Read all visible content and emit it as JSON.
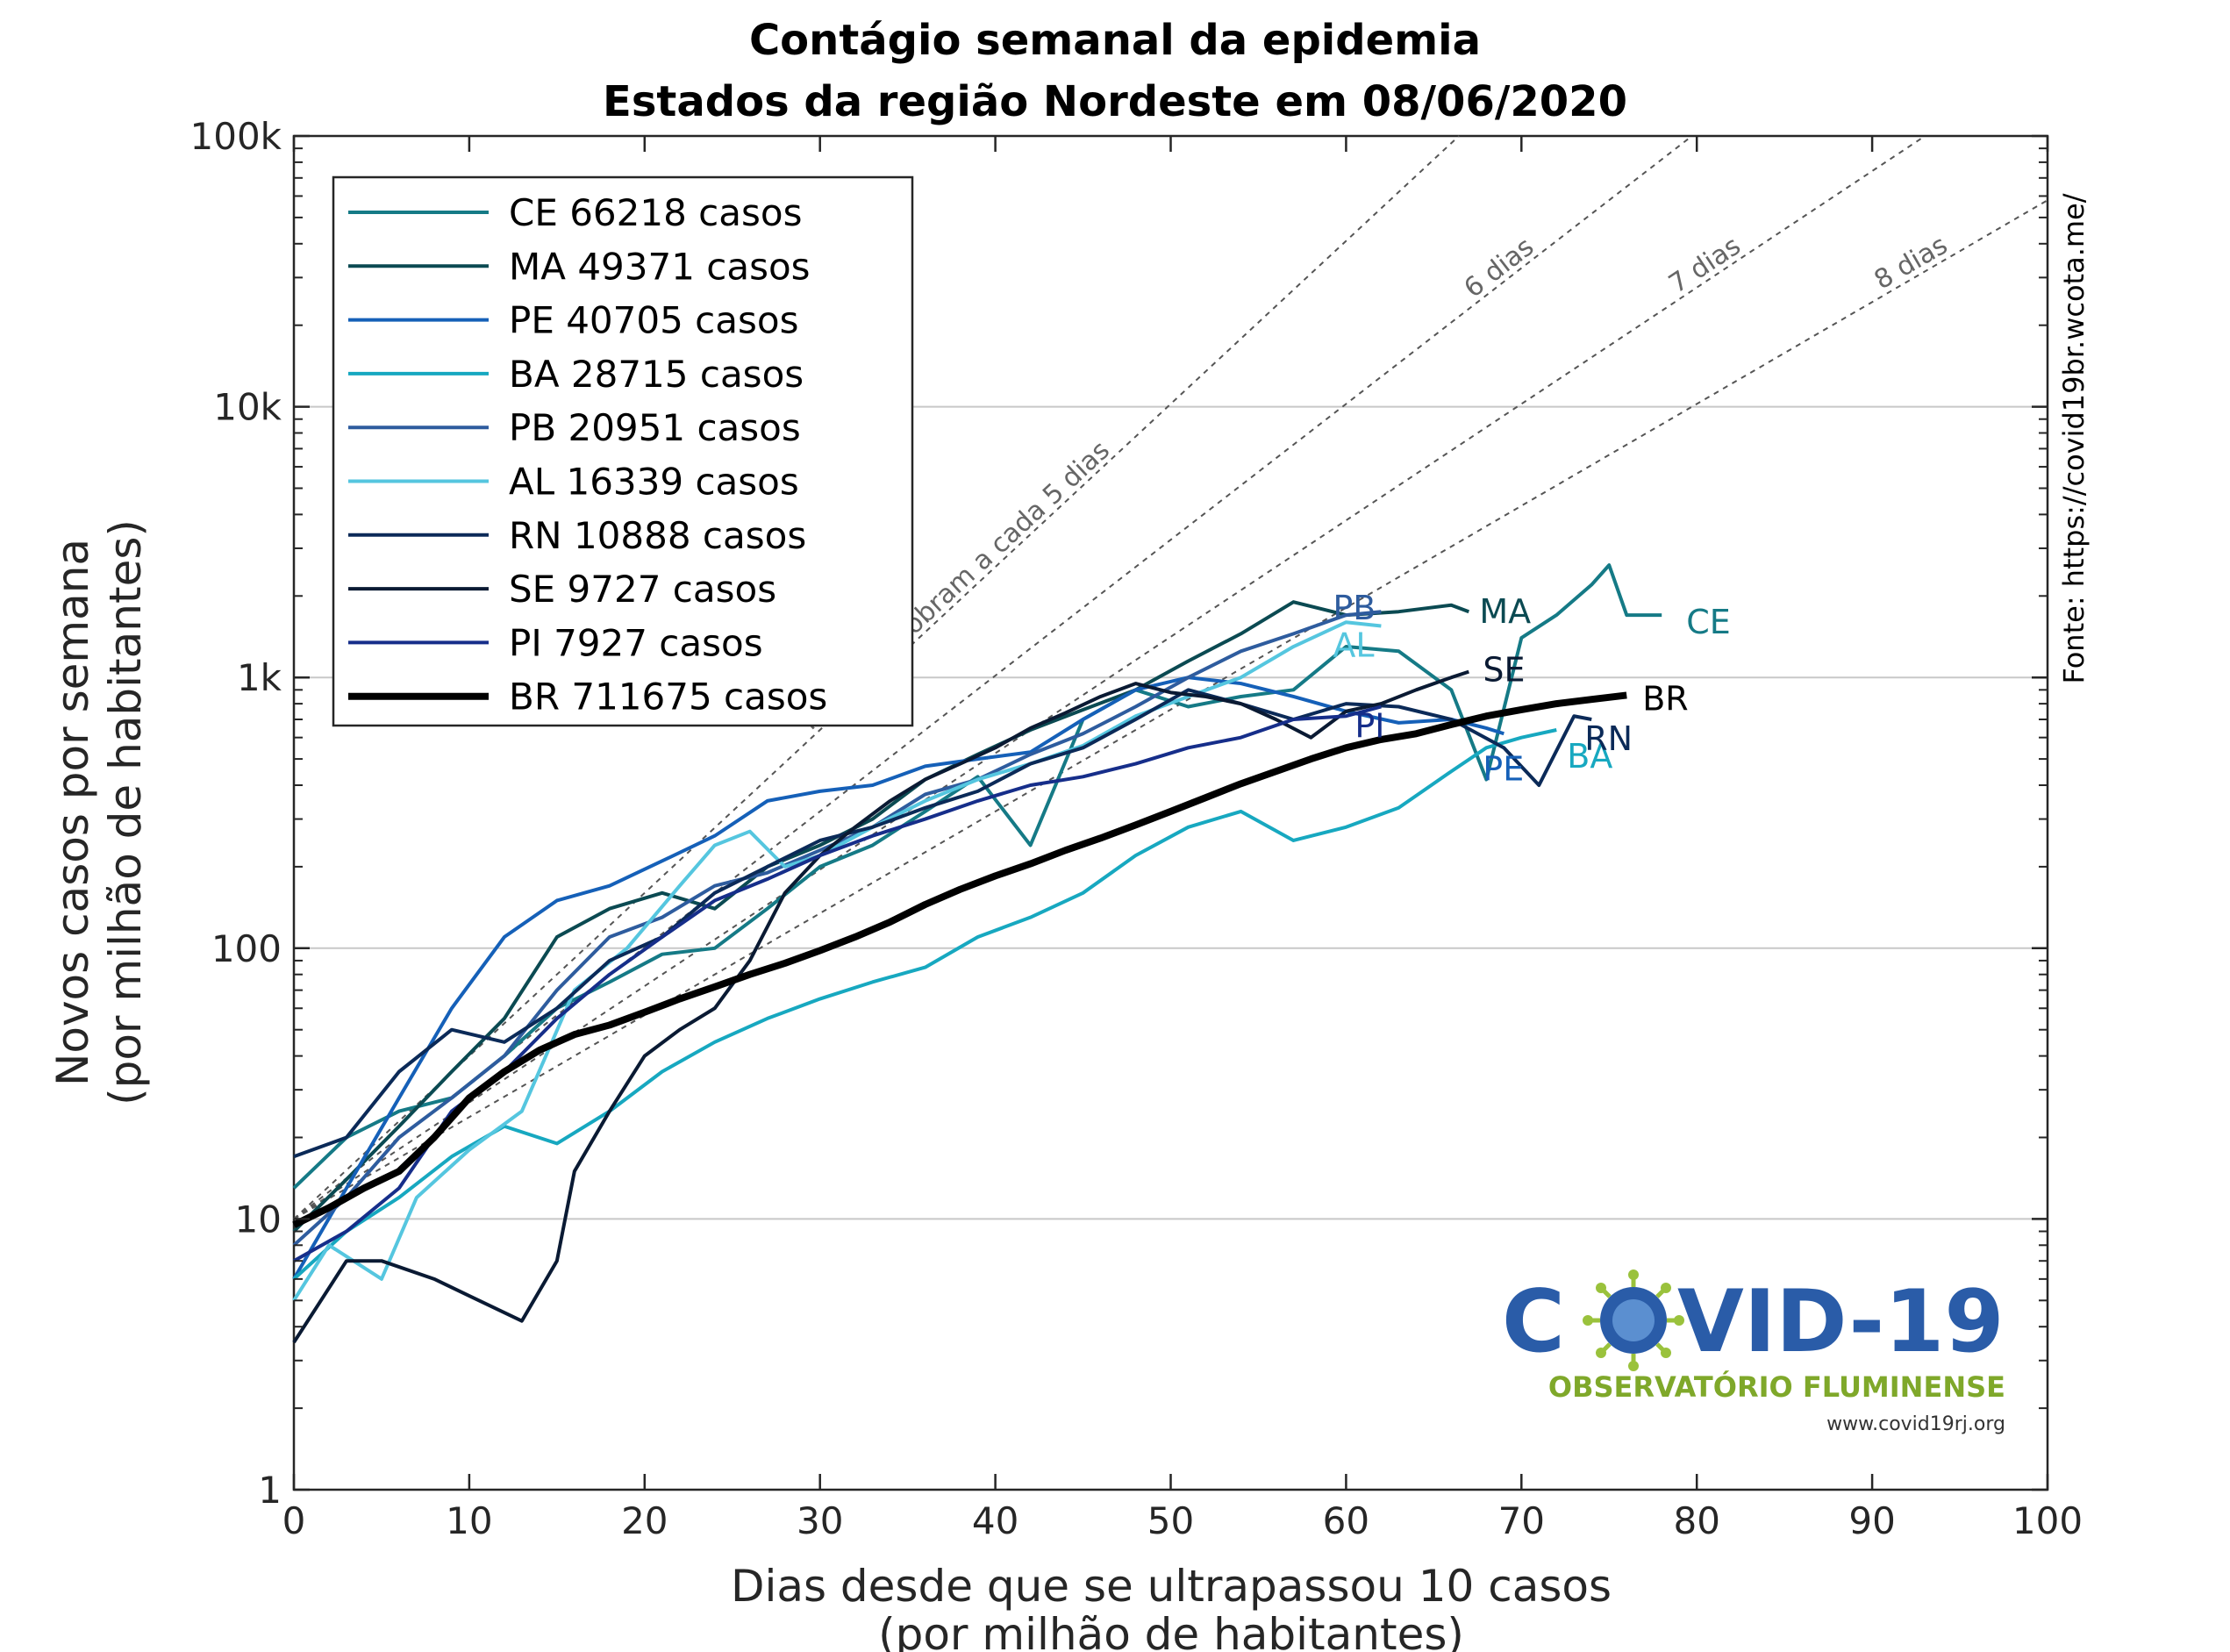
{
  "chart_data": {
    "type": "line",
    "title": "Contágio semanal da epidemia",
    "subtitle": "Estados da região Nordeste em 08/06/2020",
    "xlabel": "Dias desde que se ultrapassou 10 casos",
    "xlabel2": "(por milhão de habitantes)",
    "ylabel": "Novos casos por semana",
    "ylabel2": "(por milhão de habitantes)",
    "xlim": [
      0,
      100
    ],
    "ylim": [
      1,
      100000
    ],
    "yscale": "log",
    "grid": "horizontal",
    "x_ticks": [
      0,
      10,
      20,
      30,
      40,
      50,
      60,
      70,
      80,
      90,
      100
    ],
    "y_ticks": [
      {
        "value": 1,
        "label": "1"
      },
      {
        "value": 10,
        "label": "10"
      },
      {
        "value": 100,
        "label": "100"
      },
      {
        "value": 1000,
        "label": "1k"
      },
      {
        "value": 10000,
        "label": "10k"
      },
      {
        "value": 100000,
        "label": "100k"
      }
    ],
    "legend_position": "top-left",
    "source": "Fonte: https://covid19br.wcota.me/",
    "doubling_guides": [
      {
        "days": 5,
        "label": "números dobram a cada 5 dias"
      },
      {
        "days": 6,
        "label": "6 dias"
      },
      {
        "days": 7,
        "label": "7 dias"
      },
      {
        "days": 8,
        "label": "8 dias"
      }
    ],
    "series": [
      {
        "name": "CE",
        "legend": "CE     66218 casos",
        "color": "#157a86",
        "width": 4,
        "x": [
          0,
          3,
          6,
          9,
          12,
          15,
          18,
          21,
          24,
          27,
          30,
          33,
          36,
          39,
          42,
          45,
          48,
          51,
          54,
          57,
          60,
          63,
          66,
          68,
          70,
          72,
          74,
          75,
          76,
          78
        ],
        "y": [
          13,
          20,
          25,
          28,
          40,
          60,
          75,
          95,
          100,
          140,
          200,
          240,
          320,
          430,
          240,
          700,
          900,
          780,
          850,
          900,
          1300,
          1250,
          900,
          420,
          1400,
          1700,
          2200,
          2600,
          1700,
          1700
        ]
      },
      {
        "name": "MA",
        "legend": "MA    49371 casos",
        "color": "#0b4a52",
        "width": 4,
        "x": [
          0,
          3,
          6,
          9,
          12,
          15,
          18,
          21,
          24,
          27,
          30,
          33,
          36,
          39,
          42,
          45,
          48,
          51,
          54,
          57,
          60,
          63,
          66,
          67
        ],
        "y": [
          9,
          14,
          22,
          35,
          55,
          110,
          140,
          160,
          140,
          200,
          240,
          300,
          420,
          520,
          640,
          760,
          900,
          1150,
          1450,
          1900,
          1700,
          1750,
          1850,
          1750
        ]
      },
      {
        "name": "PE",
        "legend": "PE     40705 casos",
        "color": "#1560b8",
        "width": 4,
        "x": [
          0,
          3,
          6,
          9,
          12,
          15,
          18,
          21,
          24,
          27,
          30,
          33,
          36,
          39,
          42,
          45,
          48,
          51,
          54,
          57,
          60,
          63,
          66,
          68,
          69
        ],
        "y": [
          6,
          13,
          28,
          60,
          110,
          150,
          170,
          210,
          260,
          350,
          380,
          400,
          470,
          500,
          530,
          700,
          900,
          1000,
          950,
          850,
          750,
          680,
          700,
          650,
          620
        ]
      },
      {
        "name": "BA",
        "legend": "BA     28715 casos",
        "color": "#17a8c0",
        "width": 4,
        "x": [
          0,
          3,
          6,
          9,
          12,
          15,
          18,
          21,
          24,
          27,
          30,
          33,
          36,
          39,
          42,
          45,
          48,
          51,
          54,
          57,
          60,
          63,
          66,
          68,
          70,
          72
        ],
        "y": [
          6,
          9,
          12,
          17,
          22,
          19,
          25,
          35,
          45,
          55,
          65,
          75,
          85,
          110,
          130,
          160,
          220,
          280,
          320,
          250,
          280,
          330,
          450,
          550,
          600,
          640
        ]
      },
      {
        "name": "PB",
        "legend": "PB     20951 casos",
        "color": "#2e5c9e",
        "width": 4,
        "x": [
          0,
          3,
          6,
          9,
          12,
          15,
          18,
          21,
          24,
          27,
          30,
          33,
          36,
          39,
          42,
          45,
          48,
          51,
          54,
          57,
          60,
          62
        ],
        "y": [
          8,
          12,
          20,
          28,
          40,
          70,
          110,
          130,
          170,
          190,
          230,
          280,
          370,
          420,
          520,
          620,
          780,
          1000,
          1250,
          1450,
          1700,
          1750
        ]
      },
      {
        "name": "AL",
        "legend": "AL     16339 casos",
        "color": "#55c6df",
        "width": 4,
        "x": [
          0,
          2,
          5,
          7,
          10,
          13,
          16,
          19,
          22,
          24,
          26,
          28,
          30,
          33,
          36,
          39,
          42,
          45,
          48,
          51,
          54,
          57,
          60,
          62
        ],
        "y": [
          5,
          8,
          6,
          12,
          18,
          25,
          70,
          100,
          170,
          240,
          270,
          200,
          220,
          280,
          350,
          420,
          480,
          560,
          720,
          850,
          1000,
          1300,
          1600,
          1550
        ]
      },
      {
        "name": "RN",
        "legend": "RN       10888 casos",
        "color": "#0b2a58",
        "width": 4,
        "x": [
          0,
          3,
          6,
          9,
          12,
          15,
          18,
          21,
          24,
          27,
          30,
          33,
          36,
          39,
          42,
          45,
          48,
          51,
          54,
          57,
          60,
          63,
          66,
          69,
          71,
          73,
          74
        ],
        "y": [
          17,
          20,
          35,
          50,
          45,
          60,
          90,
          110,
          160,
          200,
          250,
          280,
          330,
          380,
          480,
          550,
          700,
          900,
          800,
          700,
          800,
          780,
          700,
          550,
          400,
          720,
          700
        ]
      },
      {
        "name": "SE",
        "legend": "SE       9727 casos",
        "color": "#0a1a33",
        "width": 4,
        "x": [
          0,
          3,
          5,
          8,
          10,
          13,
          15,
          16,
          18,
          20,
          22,
          24,
          26,
          28,
          30,
          32,
          34,
          36,
          38,
          40,
          42,
          44,
          46,
          48,
          50,
          52,
          54,
          56,
          58,
          60,
          62,
          64,
          66,
          67
        ],
        "y": [
          3.5,
          7,
          7,
          6,
          5.2,
          4.2,
          7,
          15,
          25,
          40,
          50,
          60,
          90,
          160,
          220,
          280,
          350,
          420,
          480,
          550,
          650,
          740,
          850,
          950,
          880,
          850,
          800,
          700,
          600,
          750,
          800,
          900,
          1000,
          1050
        ]
      },
      {
        "name": "PI",
        "legend": "PI       7927 casos",
        "color": "#162e8a",
        "width": 4,
        "x": [
          0,
          3,
          6,
          9,
          12,
          15,
          18,
          21,
          24,
          27,
          30,
          33,
          36,
          39,
          42,
          45,
          48,
          51,
          54,
          57,
          60,
          62
        ],
        "y": [
          7,
          9,
          13,
          25,
          35,
          55,
          80,
          110,
          150,
          180,
          220,
          260,
          300,
          350,
          400,
          430,
          480,
          550,
          600,
          700,
          720,
          780
        ]
      },
      {
        "name": "BR",
        "legend": "BR  711675 casos",
        "color": "#000000",
        "width": 8,
        "x": [
          0,
          2,
          4,
          6,
          8,
          10,
          12,
          14,
          16,
          18,
          20,
          22,
          24,
          26,
          28,
          30,
          32,
          34,
          36,
          38,
          40,
          42,
          44,
          46,
          48,
          50,
          52,
          54,
          56,
          58,
          60,
          62,
          64,
          66,
          68,
          70,
          72,
          74,
          76
        ],
        "y": [
          9.5,
          11,
          13,
          15,
          20,
          28,
          35,
          42,
          48,
          52,
          58,
          65,
          72,
          80,
          88,
          98,
          110,
          125,
          145,
          165,
          185,
          205,
          230,
          255,
          285,
          320,
          360,
          405,
          450,
          500,
          550,
          590,
          620,
          670,
          720,
          760,
          800,
          830,
          860
        ]
      }
    ],
    "end_labels": [
      {
        "series": "CE",
        "text": "CE"
      },
      {
        "series": "MA",
        "text": "MA"
      },
      {
        "series": "PB",
        "text": "PB"
      },
      {
        "series": "AL",
        "text": "AL"
      },
      {
        "series": "SE",
        "text": "SE"
      },
      {
        "series": "PI",
        "text": "PI"
      },
      {
        "series": "PE",
        "text": "PE"
      },
      {
        "series": "BA",
        "text": "BA"
      },
      {
        "series": "RN",
        "text": "RN"
      },
      {
        "series": "BR",
        "text": "BR"
      }
    ]
  },
  "logo": {
    "title_left": "C",
    "title_right": "VID-19",
    "subtitle": "OBSERVATÓRIO FLUMINENSE",
    "url": "www.covid19rj.org",
    "color_blue": "#2a5ca8",
    "color_green": "#7fa82a"
  }
}
